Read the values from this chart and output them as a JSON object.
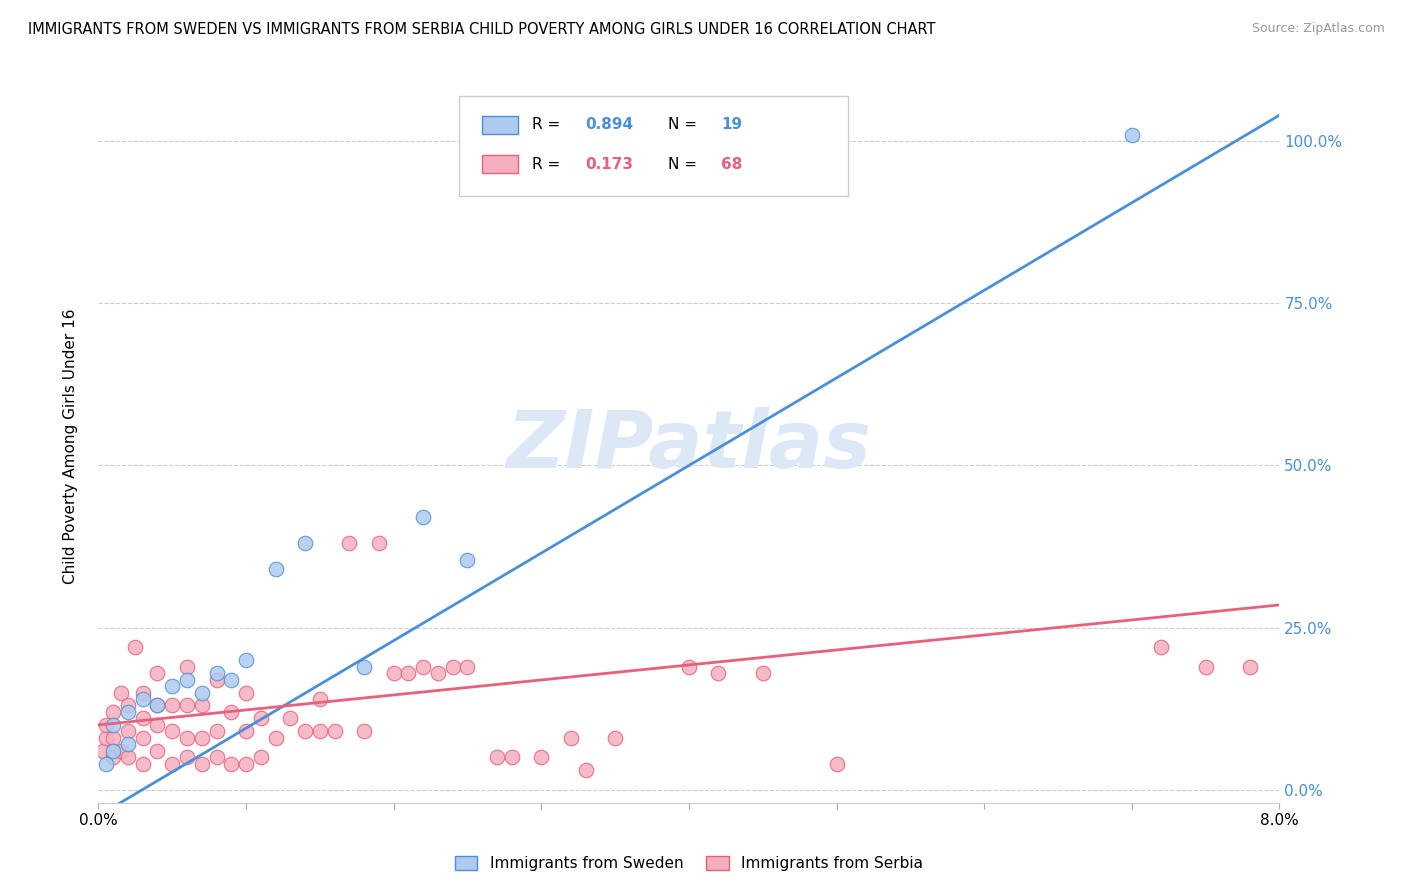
{
  "title": "IMMIGRANTS FROM SWEDEN VS IMMIGRANTS FROM SERBIA CHILD POVERTY AMONG GIRLS UNDER 16 CORRELATION CHART",
  "source": "Source: ZipAtlas.com",
  "ylabel": "Child Poverty Among Girls Under 16",
  "ylabel_right_labels": [
    "0.0%",
    "25.0%",
    "50.0%",
    "75.0%",
    "100.0%"
  ],
  "ylabel_right_values": [
    0.0,
    0.25,
    0.5,
    0.75,
    1.0
  ],
  "xlim": [
    0.0,
    0.08
  ],
  "ylim": [
    -0.02,
    1.08
  ],
  "sweden_R": 0.894,
  "sweden_N": 19,
  "serbia_R": 0.173,
  "serbia_N": 68,
  "sweden_color": "#aecbef",
  "serbia_color": "#f5afc0",
  "sweden_line_color": "#4a90d9",
  "serbia_line_color": "#e8607a",
  "watermark": "ZIPatlas",
  "watermark_color": "#dce8f5",
  "sweden_line_x0": 0.0,
  "sweden_line_y0": -0.04,
  "sweden_line_x1": 0.08,
  "sweden_line_y1": 1.04,
  "serbia_line_x0": 0.0,
  "serbia_line_y0": 0.1,
  "serbia_line_x1": 0.08,
  "serbia_line_y1": 0.285,
  "sweden_scatter_x": [
    0.0005,
    0.001,
    0.001,
    0.002,
    0.002,
    0.003,
    0.004,
    0.005,
    0.006,
    0.007,
    0.008,
    0.009,
    0.01,
    0.012,
    0.014,
    0.018,
    0.022,
    0.025,
    0.07
  ],
  "sweden_scatter_y": [
    0.04,
    0.06,
    0.1,
    0.07,
    0.12,
    0.14,
    0.13,
    0.16,
    0.17,
    0.15,
    0.18,
    0.17,
    0.2,
    0.34,
    0.38,
    0.19,
    0.42,
    0.355,
    1.01
  ],
  "serbia_scatter_x": [
    0.0003,
    0.0005,
    0.0005,
    0.001,
    0.001,
    0.001,
    0.0015,
    0.0015,
    0.002,
    0.002,
    0.002,
    0.0025,
    0.003,
    0.003,
    0.003,
    0.003,
    0.004,
    0.004,
    0.004,
    0.004,
    0.005,
    0.005,
    0.005,
    0.006,
    0.006,
    0.006,
    0.006,
    0.007,
    0.007,
    0.007,
    0.008,
    0.008,
    0.008,
    0.009,
    0.009,
    0.01,
    0.01,
    0.01,
    0.011,
    0.011,
    0.012,
    0.013,
    0.014,
    0.015,
    0.015,
    0.016,
    0.017,
    0.018,
    0.019,
    0.02,
    0.021,
    0.022,
    0.023,
    0.024,
    0.025,
    0.027,
    0.028,
    0.03,
    0.032,
    0.033,
    0.035,
    0.04,
    0.042,
    0.045,
    0.05,
    0.072,
    0.075,
    0.078
  ],
  "serbia_scatter_y": [
    0.06,
    0.08,
    0.1,
    0.05,
    0.08,
    0.12,
    0.06,
    0.15,
    0.05,
    0.09,
    0.13,
    0.22,
    0.04,
    0.08,
    0.11,
    0.15,
    0.06,
    0.1,
    0.13,
    0.18,
    0.04,
    0.09,
    0.13,
    0.05,
    0.08,
    0.13,
    0.19,
    0.04,
    0.08,
    0.13,
    0.05,
    0.09,
    0.17,
    0.04,
    0.12,
    0.04,
    0.09,
    0.15,
    0.05,
    0.11,
    0.08,
    0.11,
    0.09,
    0.09,
    0.14,
    0.09,
    0.38,
    0.09,
    0.38,
    0.18,
    0.18,
    0.19,
    0.18,
    0.19,
    0.19,
    0.05,
    0.05,
    0.05,
    0.08,
    0.03,
    0.08,
    0.19,
    0.18,
    0.18,
    0.04,
    0.22,
    0.19,
    0.19
  ]
}
